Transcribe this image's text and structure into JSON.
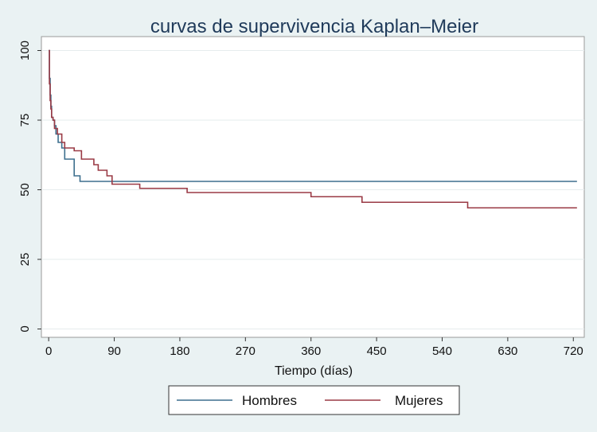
{
  "chart_data": {
    "type": "line",
    "title": "curvas de supervivencia Kaplan–Meier",
    "xlabel": "Tiempo (días)",
    "ylabel": "",
    "xlim": [
      -10,
      735
    ],
    "ylim": [
      -3,
      105
    ],
    "x_ticks": [
      0,
      90,
      180,
      270,
      360,
      450,
      540,
      630,
      720
    ],
    "y_ticks": [
      0,
      25,
      50,
      75,
      100
    ],
    "grid": "horizontal",
    "legend_position": "bottom",
    "step": true,
    "series": [
      {
        "name": "Hombres",
        "color": "#3d6f8e",
        "x": [
          0,
          1,
          2,
          3,
          4,
          6,
          8,
          10,
          13,
          18,
          22,
          25,
          35,
          43,
          60,
          120,
          725
        ],
        "y": [
          100,
          90,
          84,
          80,
          76,
          75,
          73,
          70,
          67,
          65,
          61,
          61,
          55,
          53,
          53,
          53,
          53
        ]
      },
      {
        "name": "Mujeres",
        "color": "#9a3a45",
        "x": [
          0,
          1,
          2,
          3,
          4,
          6,
          8,
          12,
          18,
          22,
          35,
          45,
          62,
          68,
          80,
          87,
          125,
          190,
          360,
          430,
          575,
          725
        ],
        "y": [
          100,
          88,
          82,
          79,
          76,
          75,
          72,
          70,
          67,
          65,
          64,
          61,
          59,
          57,
          55,
          52,
          50.5,
          49,
          47.5,
          45.5,
          43.5,
          43.5
        ]
      }
    ]
  }
}
